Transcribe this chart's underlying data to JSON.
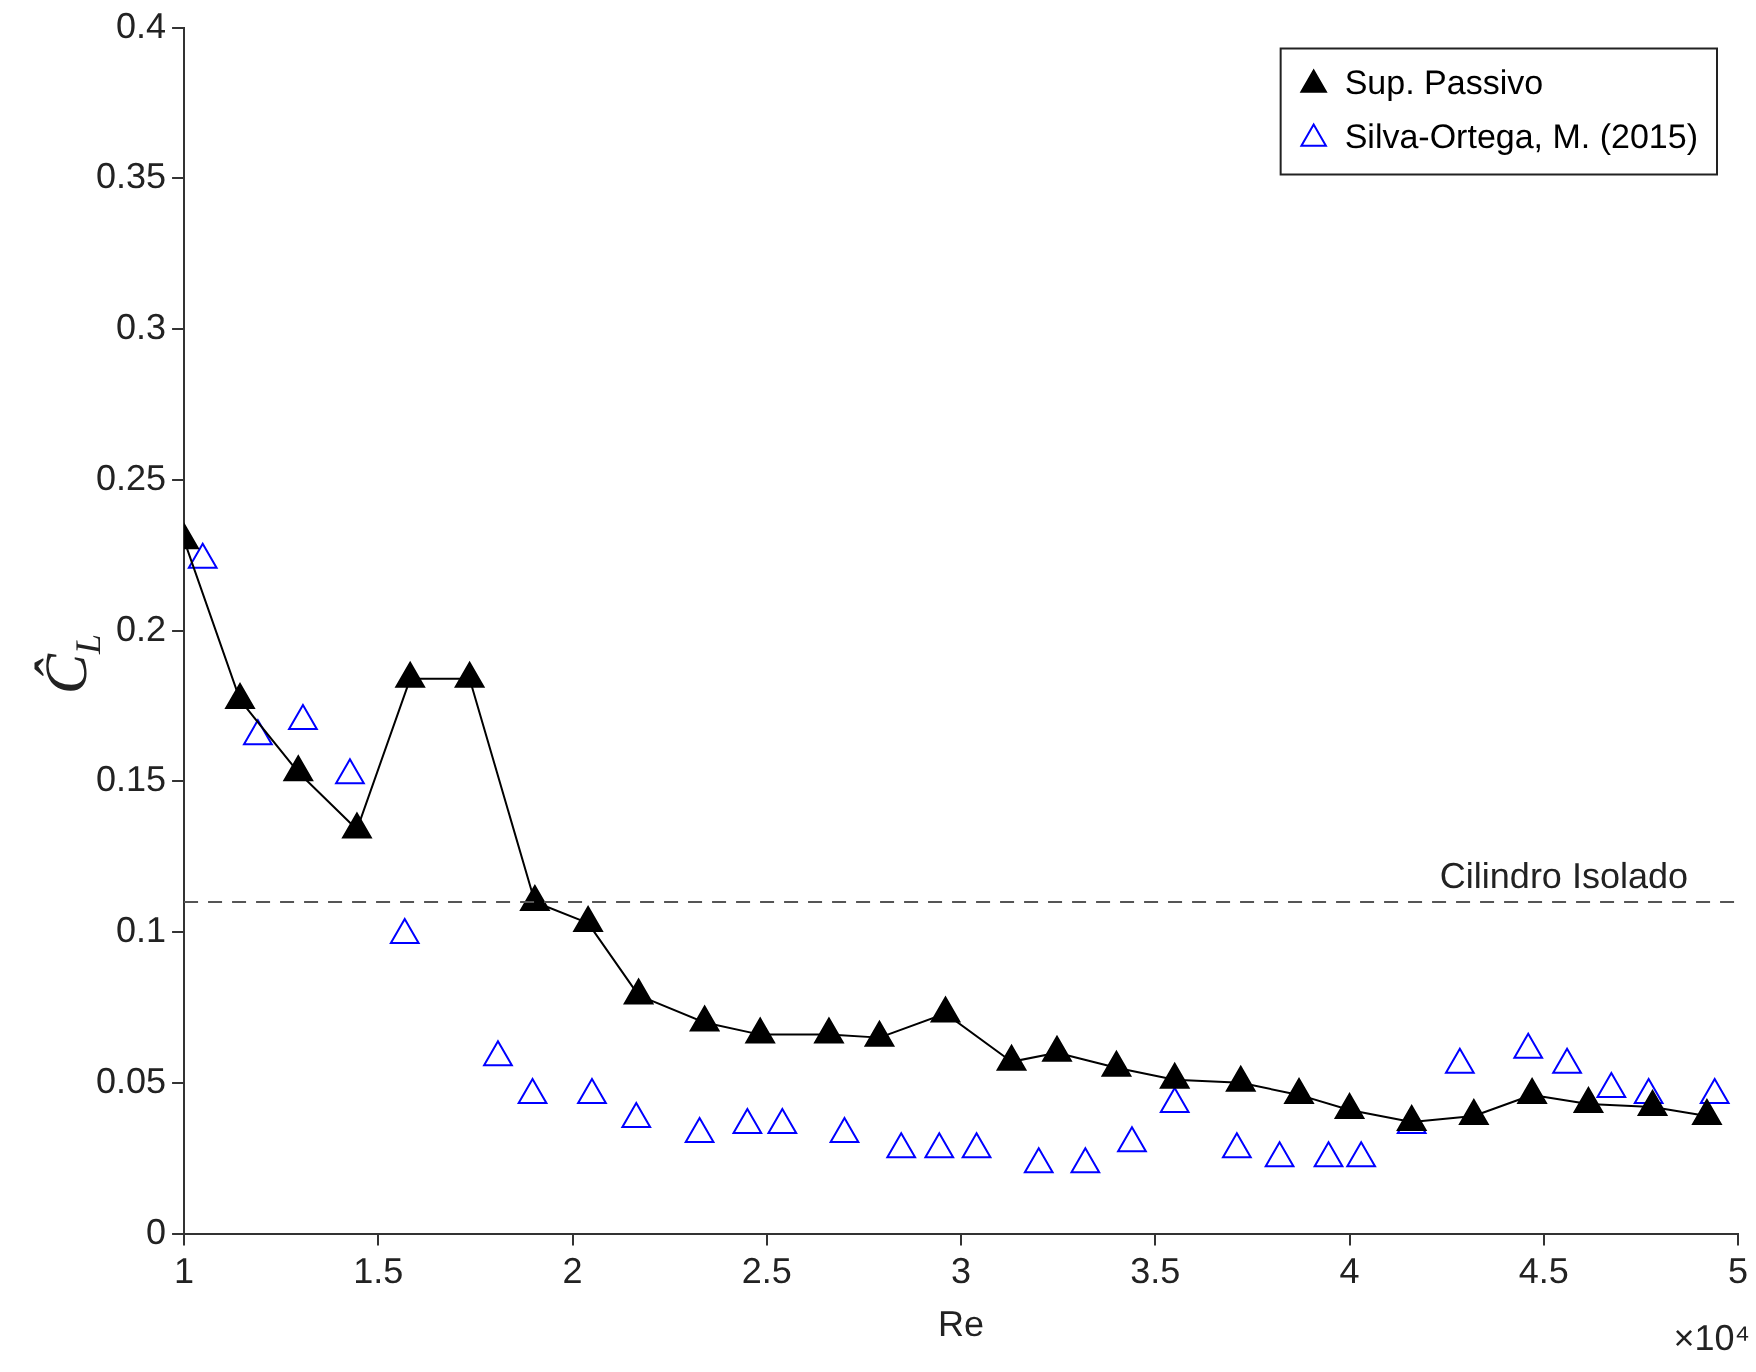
{
  "chart_data": {
    "type": "line",
    "xlabel": "Re",
    "ylabel": "Ĉ$_{L}$",
    "annotations": [
      "×10⁴"
    ],
    "xlim": [
      1,
      5
    ],
    "xticks": [
      1,
      1.5,
      2,
      2.5,
      3,
      3.5,
      4,
      4.5,
      5
    ],
    "ylim": [
      0,
      0.4
    ],
    "yticks": [
      0,
      0.05,
      0.1,
      0.15,
      0.2,
      0.25,
      0.3,
      0.35,
      0.4
    ],
    "grid": false,
    "legend": "top right",
    "ref_lines": [
      {
        "axis": "y",
        "value": 0.11,
        "label": "Cilindro Isolado",
        "color": "#555555",
        "line_style": "dashed"
      }
    ],
    "series": [
      {
        "name": "Sup. Passivo",
        "type": "line",
        "marker": "triangle",
        "color": "#000000",
        "x": [
          1.0,
          1.144,
          1.294,
          1.445,
          1.582,
          1.735,
          1.903,
          2.04,
          2.17,
          2.34,
          2.483,
          2.66,
          2.79,
          2.96,
          3.13,
          3.247,
          3.4,
          3.55,
          3.72,
          3.87,
          4.0,
          4.16,
          4.32,
          4.47,
          4.615,
          4.78,
          4.92
        ],
        "values": [
          0.23,
          0.177,
          0.153,
          0.134,
          0.184,
          0.184,
          0.11,
          0.103,
          0.079,
          0.07,
          0.066,
          0.066,
          0.065,
          0.073,
          0.057,
          0.06,
          0.055,
          0.051,
          0.05,
          0.046,
          0.041,
          0.037,
          0.039,
          0.046,
          0.043,
          0.042,
          0.039
        ]
      },
      {
        "name": "Silva-Ortega, M. (2015)",
        "type": "scatter",
        "marker": "triangle",
        "color": "#0000ff",
        "x": [
          1.048,
          1.19,
          1.306,
          1.427,
          1.568,
          1.808,
          1.897,
          2.05,
          2.164,
          2.327,
          2.45,
          2.54,
          2.7,
          2.846,
          2.944,
          3.04,
          3.2,
          3.32,
          3.44,
          3.55,
          3.71,
          3.82,
          3.946,
          4.03,
          4.16,
          4.284,
          4.46,
          4.56,
          4.674,
          4.77,
          4.94
        ],
        "values": [
          0.2235,
          0.165,
          0.17,
          0.152,
          0.099,
          0.0585,
          0.046,
          0.046,
          0.038,
          0.033,
          0.036,
          0.036,
          0.033,
          0.028,
          0.028,
          0.028,
          0.023,
          0.023,
          0.03,
          0.043,
          0.028,
          0.025,
          0.025,
          0.025,
          0.036,
          0.056,
          0.061,
          0.056,
          0.048,
          0.046,
          0.046
        ]
      }
    ]
  }
}
